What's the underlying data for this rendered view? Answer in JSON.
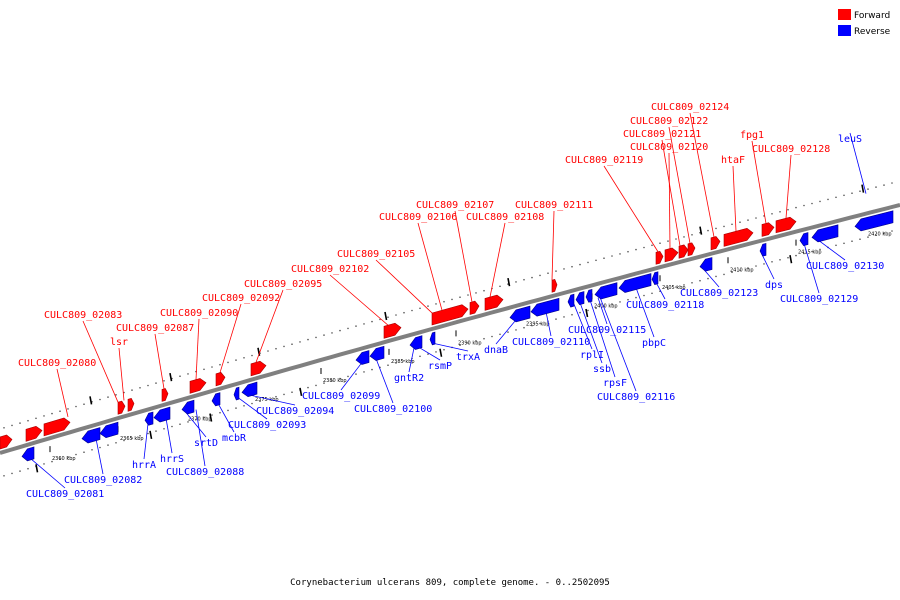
{
  "caption": "Corynebacterium ulcerans 809, complete genome. - 0..2502095",
  "legend": [
    {
      "label": "Forward",
      "color": "#ff0000"
    },
    {
      "label": "Reverse",
      "color": "#0000ff"
    }
  ],
  "colors": {
    "forward": "#ff0000",
    "reverse": "#0000ff",
    "backbone": "#808080"
  },
  "ticks_kbp": [
    2360,
    2365,
    2370,
    2375,
    2380,
    2385,
    2390,
    2395,
    2400,
    2405,
    2410,
    2415,
    2420
  ],
  "tick_unit": "kbp",
  "forward_labels": [
    "CULC809_02080",
    "lsr",
    "CULC809_02083",
    "CULC809_02087",
    "CULC809_02090",
    "CULC809_02092",
    "CULC809_02095",
    "CULC809_02102",
    "CULC809_02105",
    "CULC809_02106",
    "CULC809_02107",
    "CULC809_02108",
    "CULC809_02111",
    "CULC809_02119",
    "CULC809_02120",
    "CULC809_02121",
    "CULC809_02122",
    "CULC809_02124",
    "htaF",
    "fpg1",
    "CULC809_02128"
  ],
  "reverse_labels": [
    "CULC809_02081",
    "CULC809_02082",
    "hrrA",
    "hrrS",
    "srtD",
    "CULC809_02088",
    "mcbR",
    "CULC809_02093",
    "CULC809_02094",
    "CULC809_02099",
    "CULC809_02100",
    "gntR2",
    "rsmP",
    "trxA",
    "dnaB",
    "CULC809_02110",
    "rplI",
    "ssb",
    "rpsF",
    "CULC809_02116",
    "CULC809_02115",
    "pbpC",
    "CULC809_02118",
    "CULC809_02123",
    "dps",
    "CULC809_02129",
    "CULC809_02130",
    "leuS"
  ]
}
